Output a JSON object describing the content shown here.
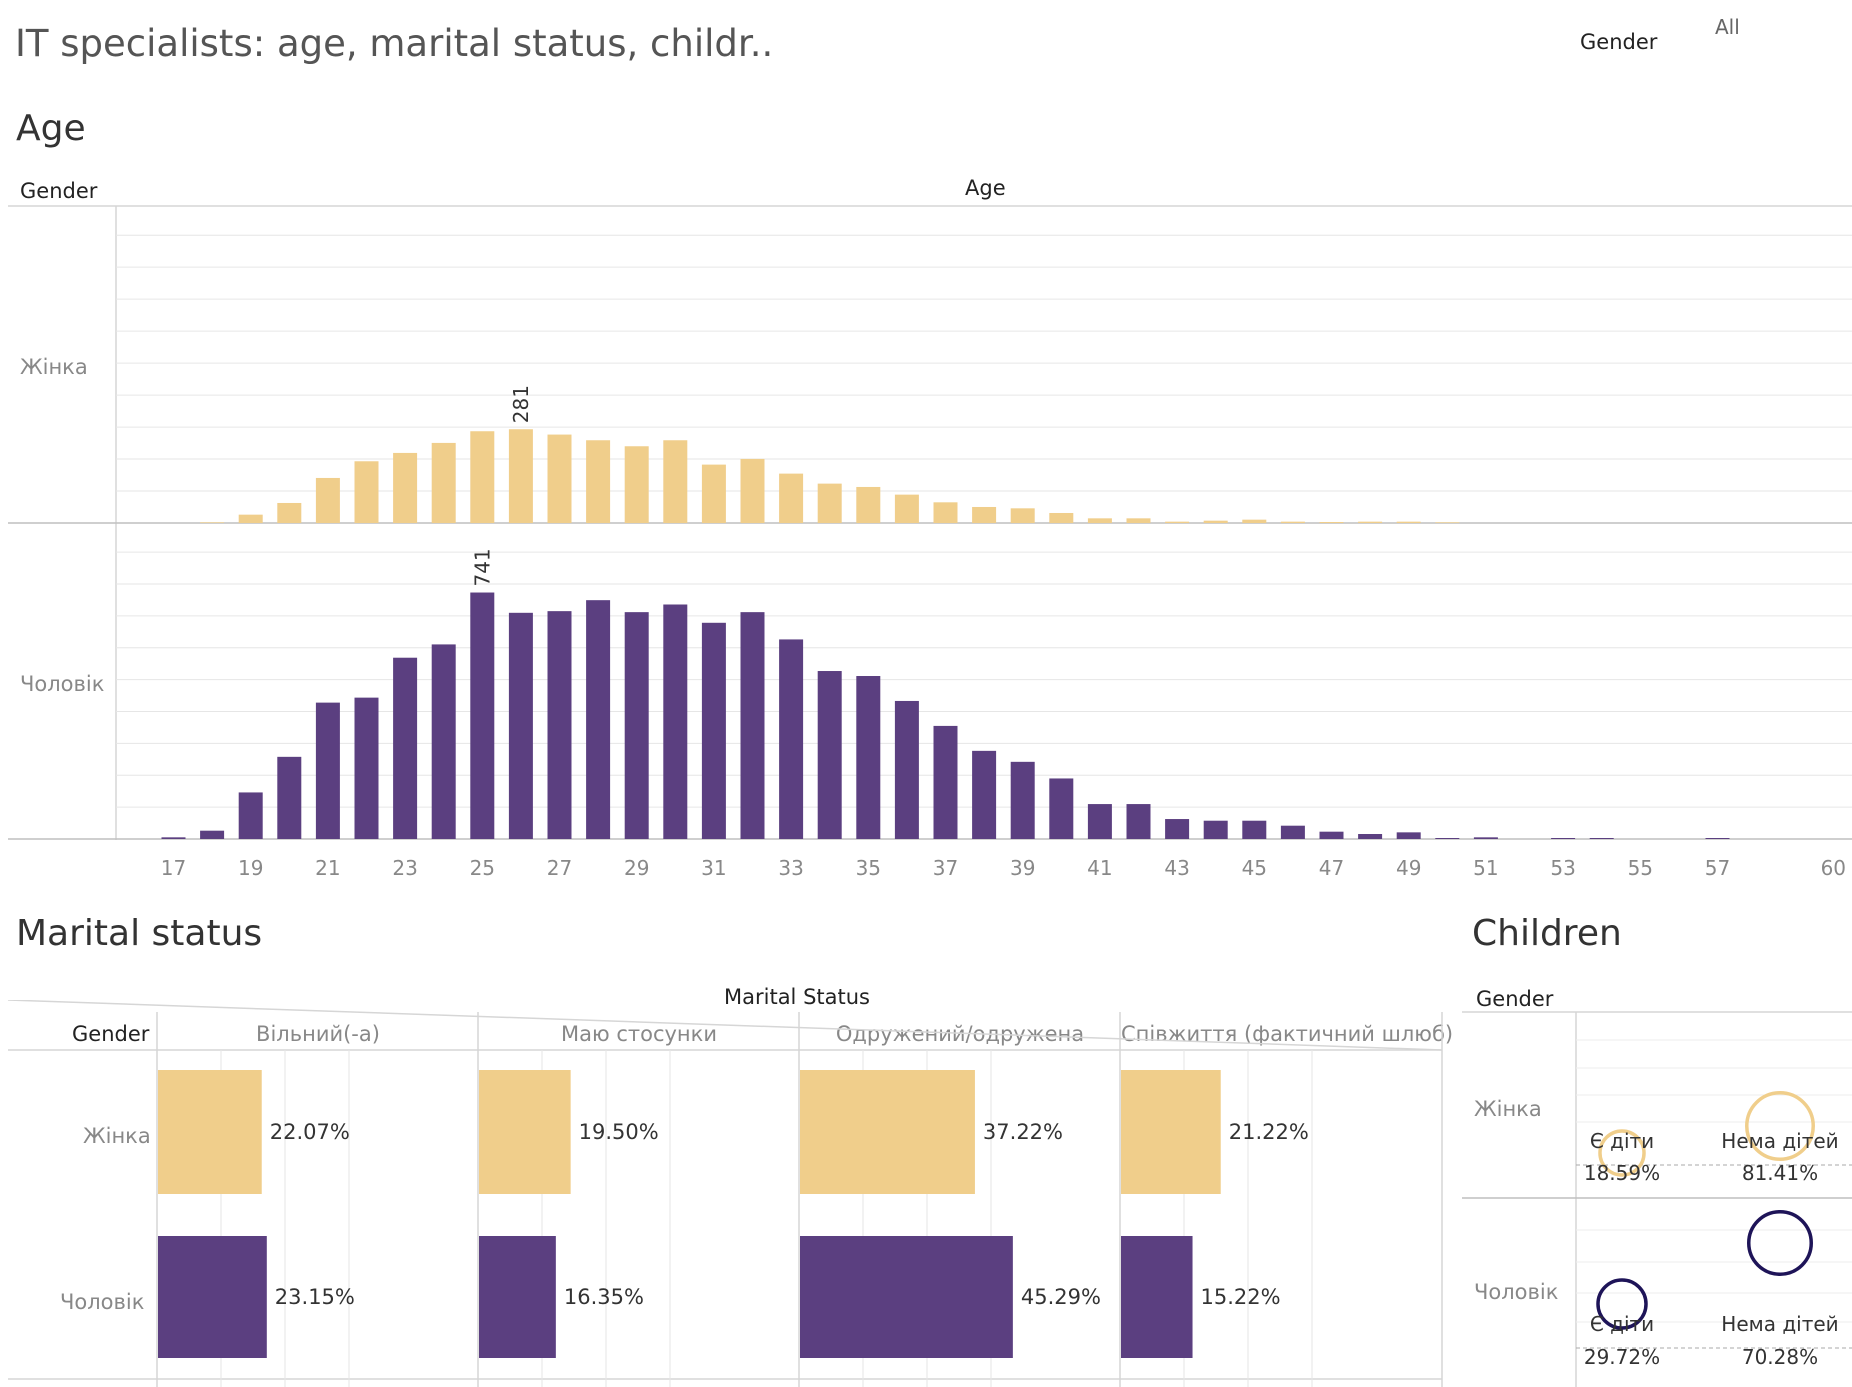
{
  "dashboard": {
    "title": "IT specialists: age, marital status, childr..",
    "filter": {
      "label": "Gender",
      "value": "All"
    }
  },
  "colors": {
    "female": "#F0CE8B",
    "male": "#5B3F80",
    "male_ring": "#1E1458",
    "grid": "#e6e6e6"
  },
  "sections": {
    "age": "Age",
    "marital": "Marital status",
    "children": "Children"
  },
  "age_panel": {
    "row_header": "Gender",
    "col_header": "Age",
    "rows": [
      "Жінка",
      "Чоловік"
    ],
    "peak_labels": {
      "female": "281",
      "male": "741"
    }
  },
  "marital_panel": {
    "super_header": "Marital Status",
    "row_header": "Gender",
    "rows": [
      "Жінка",
      "Чоловік"
    ]
  },
  "children_panel": {
    "row_header": "Gender",
    "rows": [
      "Жінка",
      "Чоловік"
    ]
  },
  "chart_data": [
    {
      "type": "bar",
      "title": "Age",
      "xlabel": "Age",
      "ylabel": "Gender",
      "x_ticks": [
        "17",
        "19",
        "21",
        "23",
        "25",
        "27",
        "29",
        "31",
        "33",
        "35",
        "37",
        "39",
        "41",
        "43",
        "45",
        "47",
        "49",
        "51",
        "53",
        "55",
        "57",
        "60"
      ],
      "categories": [
        17,
        18,
        19,
        20,
        21,
        22,
        23,
        24,
        25,
        26,
        27,
        28,
        29,
        30,
        31,
        32,
        33,
        34,
        35,
        36,
        37,
        38,
        39,
        40,
        41,
        42,
        43,
        44,
        45,
        46,
        47,
        48,
        49,
        50,
        51,
        52,
        53,
        54,
        55,
        56,
        57,
        58,
        59,
        60
      ],
      "series": [
        {
          "name": "Жінка",
          "values": [
            0,
            2,
            25,
            60,
            135,
            185,
            210,
            240,
            275,
            281,
            265,
            248,
            230,
            248,
            175,
            192,
            148,
            118,
            108,
            85,
            62,
            48,
            44,
            30,
            14,
            14,
            4,
            7,
            10,
            4,
            3,
            4,
            4,
            2,
            0,
            0,
            0,
            0,
            0,
            0,
            0,
            0,
            0,
            0
          ]
        },
        {
          "name": "Чоловік",
          "values": [
            5,
            25,
            140,
            247,
            410,
            425,
            545,
            585,
            741,
            680,
            685,
            718,
            682,
            705,
            650,
            682,
            600,
            505,
            490,
            415,
            340,
            265,
            232,
            182,
            105,
            105,
            60,
            55,
            55,
            40,
            22,
            15,
            20,
            3,
            5,
            0,
            3,
            3,
            0,
            0,
            3,
            0,
            0,
            0
          ]
        }
      ],
      "ylim_female": [
        0,
        950
      ],
      "ylim_male": [
        0,
        950
      ]
    },
    {
      "type": "bar",
      "title": "Marital status",
      "categories": [
        "Вільний(-а)",
        "Маю стосунки",
        "Одружений/одружена",
        "Співжиття (фактичний шлюб)"
      ],
      "series": [
        {
          "name": "Жінка",
          "values": [
            22.07,
            19.5,
            37.22,
            21.22
          ],
          "labels": [
            "22.07%",
            "19.50%",
            "37.22%",
            "21.22%"
          ]
        },
        {
          "name": "Чоловік",
          "values": [
            23.15,
            16.35,
            45.29,
            15.22
          ],
          "labels": [
            "23.15%",
            "16.35%",
            "45.29%",
            "15.22%"
          ]
        }
      ],
      "xlim": [
        0,
        50
      ]
    },
    {
      "type": "scatter",
      "title": "Children",
      "categories": [
        "Є діти",
        "Нема дітей"
      ],
      "series": [
        {
          "name": "Жінка",
          "values": [
            18.59,
            81.41
          ],
          "labels": [
            "18.59%",
            "81.41%"
          ]
        },
        {
          "name": "Чоловік",
          "values": [
            29.72,
            70.28
          ],
          "labels": [
            "29.72%",
            "70.28%"
          ]
        }
      ]
    }
  ]
}
